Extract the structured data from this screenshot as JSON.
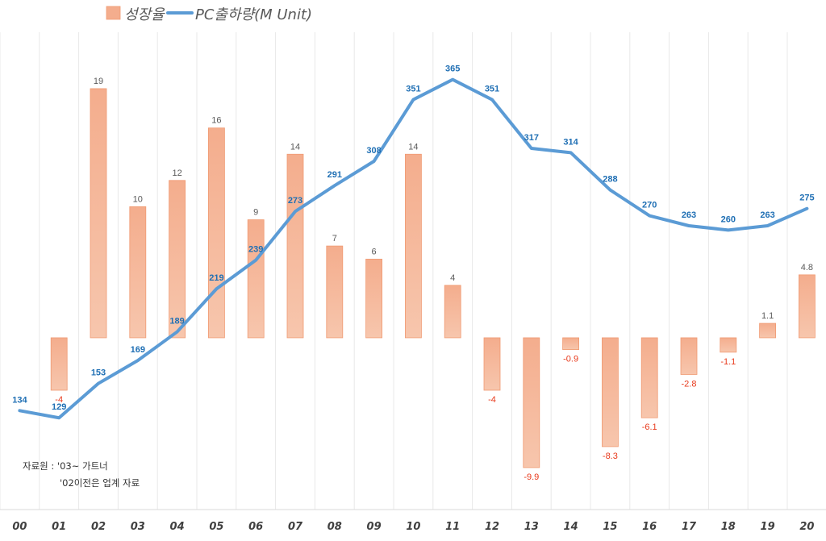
{
  "chart_data": {
    "type": "bar+line",
    "title": "",
    "categories": [
      "00",
      "01",
      "02",
      "03",
      "04",
      "05",
      "06",
      "07",
      "08",
      "09",
      "10",
      "11",
      "12",
      "13",
      "14",
      "15",
      "16",
      "17",
      "18",
      "19",
      "20"
    ],
    "series": [
      {
        "name": "성장율",
        "type": "bar",
        "values": [
          null,
          -4,
          19,
          10,
          12,
          16,
          9,
          14,
          7,
          6,
          14,
          4,
          -4,
          -9.9,
          -0.9,
          -8.3,
          -6.1,
          -2.8,
          -1.1,
          1.1,
          4.8
        ],
        "labels": [
          "",
          "-4",
          "19",
          "10",
          "12",
          "16",
          "9",
          "14",
          "7",
          "6",
          "14",
          "4",
          "-4",
          "-9.9",
          "-0.9",
          "-8.3",
          "-6.1",
          "-2.8",
          "-1.1",
          "1.1",
          "4.8"
        ]
      },
      {
        "name": "PC출하량(M Unit)",
        "type": "line",
        "values": [
          134,
          129,
          153,
          169,
          189,
          219,
          239,
          273,
          291,
          308,
          351,
          365,
          351,
          317,
          314,
          288,
          270,
          263,
          260,
          263,
          275
        ]
      }
    ],
    "bar_ylim": [
      -13.1,
      23.3
    ],
    "line_ylim": [
      65,
      398
    ],
    "grid": "vertical",
    "legend": "top-center"
  },
  "colors": {
    "bar_top": "#f4ad8d",
    "bar_bottom": "#f7c6ad",
    "bar_stroke": "#f09a72",
    "line": "#5b9bd5",
    "line_label": "#1f6fb4",
    "pos_label": "#595959",
    "neg_label": "#e8391b",
    "grid": "#e8e8e8"
  },
  "legend": {
    "bar": "성장율",
    "line": "PC출하량(M Unit)"
  },
  "source": {
    "line1": "자료원 : '03~ 가트너",
    "line2": "'02이전은 업계 자료"
  }
}
